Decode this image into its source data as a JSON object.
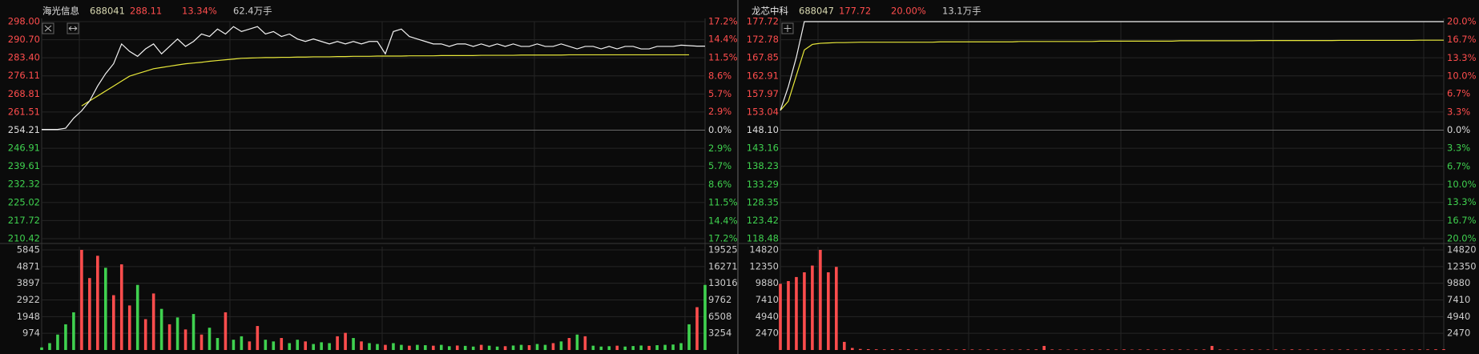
{
  "chart_data": [
    {
      "type": "intraday",
      "name": "海光信息",
      "code": "688041",
      "price_text": 288.11,
      "change": "13.34%",
      "volume_text": "62.4万手",
      "ylim": [
        210.42,
        298
      ],
      "yticks": [
        {
          "value": 298,
          "label": "298.00"
        },
        {
          "value": 290.7,
          "label": "290.70"
        },
        {
          "value": 283.4,
          "label": "283.40"
        },
        {
          "value": 276.11,
          "label": "276.11"
        },
        {
          "value": 268.81,
          "label": "268.81"
        },
        {
          "value": 261.51,
          "label": "261.51"
        },
        {
          "value": 254.21,
          "label": "254.21"
        },
        {
          "value": 246.91,
          "label": "246.91"
        },
        {
          "value": 239.61,
          "label": "239.61"
        },
        {
          "value": 232.32,
          "label": "232.32"
        },
        {
          "value": 225.02,
          "label": "225.02"
        },
        {
          "value": 217.72,
          "label": "217.72"
        },
        {
          "value": 210.42,
          "label": "210.42"
        }
      ],
      "y2lim": [
        -17.2,
        17.2
      ],
      "y2ticks": [
        {
          "value": 17.2,
          "label": "17.2%"
        },
        {
          "value": 14.4,
          "label": "14.4%"
        },
        {
          "value": 11.5,
          "label": "11.5%"
        },
        {
          "value": 8.6,
          "label": "8.6%"
        },
        {
          "value": 5.7,
          "label": "5.7%"
        },
        {
          "value": 2.9,
          "label": "2.9%"
        },
        {
          "value": 0,
          "label": "0.0%"
        },
        {
          "value": -2.9,
          "label": "2.9%"
        },
        {
          "value": -5.7,
          "label": "5.7%"
        },
        {
          "value": -8.6,
          "label": "8.6%"
        },
        {
          "value": -11.5,
          "label": "11.5%"
        },
        {
          "value": -14.4,
          "label": "14.4%"
        },
        {
          "value": -17.2,
          "label": "17.2%"
        }
      ],
      "price": [
        254.5,
        254.5,
        254.5,
        255,
        259,
        262,
        266,
        272,
        277,
        281,
        289,
        286,
        284,
        287,
        289,
        285,
        288,
        291,
        288,
        290,
        293,
        292,
        295,
        293,
        296,
        294,
        295,
        296,
        293,
        294,
        292,
        293,
        291,
        290,
        291,
        290,
        289,
        290,
        289,
        290,
        289,
        290,
        290,
        285,
        294,
        295,
        292,
        291,
        290,
        289,
        289,
        288,
        289,
        289,
        288,
        289,
        288,
        289,
        288,
        289,
        288,
        288,
        289,
        288,
        288,
        289,
        288,
        287,
        288,
        288,
        287,
        288,
        287,
        288,
        288,
        287,
        287,
        288,
        288,
        288,
        288.5,
        288.3,
        288.1,
        288.11
      ],
      "average": [
        null,
        null,
        null,
        null,
        null,
        264,
        266,
        268,
        270,
        272,
        274,
        276,
        277,
        278,
        279,
        279.5,
        280,
        280.5,
        281,
        281.3,
        281.6,
        282,
        282.3,
        282.6,
        282.9,
        283.2,
        283.3,
        283.4,
        283.5,
        283.5,
        283.6,
        283.6,
        283.7,
        283.7,
        283.8,
        283.8,
        283.8,
        283.9,
        283.9,
        284,
        284,
        284,
        284.1,
        284.1,
        284.1,
        284.1,
        284.2,
        284.2,
        284.2,
        284.2,
        284.3,
        284.3,
        284.3,
        284.3,
        284.3,
        284.4,
        284.4,
        284.4,
        284.4,
        284.4,
        284.5,
        284.5,
        284.5,
        284.5,
        284.5,
        284.5,
        284.6,
        284.6,
        284.6,
        284.6,
        284.6,
        284.6,
        284.6,
        284.6,
        284.6,
        284.6,
        284.6,
        284.6,
        284.6,
        284.6,
        284.6,
        284.6,
        null,
        null
      ],
      "volume": [
        150,
        400,
        900,
        1500,
        2200,
        5845,
        4200,
        5500,
        4800,
        3200,
        5000,
        2600,
        3800,
        1800,
        3300,
        2400,
        1500,
        1900,
        1200,
        2100,
        900,
        1300,
        700,
        2200,
        600,
        800,
        500,
        1400,
        600,
        500,
        700,
        400,
        600,
        500,
        350,
        450,
        400,
        800,
        1000,
        700,
        500,
        400,
        350,
        300,
        400,
        300,
        250,
        300,
        280,
        250,
        300,
        220,
        260,
        240,
        200,
        300,
        250,
        200,
        220,
        260,
        300,
        280,
        350,
        300,
        400,
        500,
        700,
        900,
        800,
        250,
        200,
        220,
        250,
        200,
        230,
        260,
        240,
        280,
        300,
        320,
        400,
        1500,
        2500,
        3800
      ],
      "volume_up": [
        false,
        false,
        false,
        false,
        false,
        true,
        true,
        true,
        false,
        true,
        true,
        true,
        false,
        true,
        true,
        false,
        true,
        false,
        true,
        false,
        true,
        false,
        false,
        true,
        false,
        false,
        true,
        true,
        false,
        false,
        true,
        false,
        false,
        true,
        false,
        false,
        false,
        true,
        true,
        false,
        true,
        false,
        false,
        true,
        false,
        false,
        true,
        false,
        false,
        true,
        false,
        false,
        true,
        false,
        false,
        true,
        false,
        false,
        true,
        false,
        false,
        true,
        false,
        false,
        true,
        false,
        true,
        false,
        true,
        false,
        false,
        false,
        true,
        false,
        false,
        false,
        true,
        false,
        false,
        false,
        false,
        false,
        true,
        false
      ],
      "volume_ylim": [
        0,
        5845
      ],
      "volume_yticks": [
        5845,
        4871,
        3897,
        2922,
        1948,
        974
      ],
      "volume_y2lim": [
        0,
        19525
      ],
      "volume_y2ticks": [
        19525,
        16271,
        13016,
        9762,
        6508,
        3254
      ],
      "price_color": "#f2f2f2",
      "average_color": "#e8e83a",
      "up_color": "#ff4d4d",
      "down_color": "#3fd14f",
      "grid": true
    },
    {
      "type": "intraday",
      "name": "龙芯中科",
      "code": "688047",
      "price_text": 177.72,
      "change": "20.00%",
      "volume_text": "13.1万手",
      "ylim": [
        118.48,
        177.72
      ],
      "yticks": [
        {
          "value": 177.72,
          "label": "177.72"
        },
        {
          "value": 172.78,
          "label": "172.78"
        },
        {
          "value": 167.85,
          "label": "167.85"
        },
        {
          "value": 162.91,
          "label": "162.91"
        },
        {
          "value": 157.97,
          "label": "157.97"
        },
        {
          "value": 153.04,
          "label": "153.04"
        },
        {
          "value": 148.1,
          "label": "148.10"
        },
        {
          "value": 143.16,
          "label": "143.16"
        },
        {
          "value": 138.23,
          "label": "138.23"
        },
        {
          "value": 133.29,
          "label": "133.29"
        },
        {
          "value": 128.35,
          "label": "128.35"
        },
        {
          "value": 123.42,
          "label": "123.42"
        },
        {
          "value": 118.48,
          "label": "118.48"
        }
      ],
      "y2lim": [
        -20,
        20
      ],
      "y2ticks": [
        {
          "value": 20,
          "label": "20.0%"
        },
        {
          "value": 16.7,
          "label": "16.7%"
        },
        {
          "value": 13.3,
          "label": "13.3%"
        },
        {
          "value": 10,
          "label": "10.0%"
        },
        {
          "value": 6.7,
          "label": "6.7%"
        },
        {
          "value": 3.3,
          "label": "3.3%"
        },
        {
          "value": 0,
          "label": "0.0%"
        },
        {
          "value": -3.3,
          "label": "3.3%"
        },
        {
          "value": -6.7,
          "label": "6.7%"
        },
        {
          "value": -10,
          "label": "10.0%"
        },
        {
          "value": -13.3,
          "label": "13.3%"
        },
        {
          "value": -16.7,
          "label": "16.7%"
        },
        {
          "value": -20,
          "label": "20.0%"
        }
      ],
      "price": [
        153.5,
        160,
        168,
        177.72,
        177.72,
        177.72,
        177.72,
        177.72,
        177.72,
        177.72,
        177.72,
        177.72,
        177.72,
        177.72,
        177.72,
        177.72,
        177.72,
        177.72,
        177.72,
        177.72,
        177.72,
        177.72,
        177.72,
        177.72,
        177.72,
        177.72,
        177.72,
        177.72,
        177.72,
        177.72,
        177.72,
        177.72,
        177.72,
        177.72,
        177.72,
        177.72,
        177.72,
        177.72,
        177.72,
        177.72,
        177.72,
        177.72,
        177.72,
        177.72,
        177.72,
        177.72,
        177.72,
        177.72,
        177.72,
        177.72,
        177.72,
        177.72,
        177.72,
        177.72,
        177.72,
        177.72,
        177.72,
        177.72,
        177.72,
        177.72,
        177.72,
        177.72,
        177.72,
        177.72,
        177.72,
        177.72,
        177.72,
        177.72,
        177.72,
        177.72,
        177.72,
        177.72,
        177.72,
        177.72,
        177.72,
        177.72,
        177.72,
        177.72,
        177.72,
        177.72,
        177.72,
        177.72,
        177.72,
        177.72
      ],
      "average": [
        153.5,
        156,
        163,
        170,
        171.5,
        171.8,
        171.9,
        172,
        172,
        172.05,
        172.1,
        172.1,
        172.1,
        172.1,
        172.1,
        172.1,
        172.1,
        172.1,
        172.1,
        172.1,
        172.2,
        172.2,
        172.2,
        172.2,
        172.2,
        172.2,
        172.2,
        172.2,
        172.2,
        172.2,
        172.3,
        172.3,
        172.3,
        172.3,
        172.3,
        172.3,
        172.3,
        172.3,
        172.3,
        172.3,
        172.4,
        172.4,
        172.4,
        172.4,
        172.4,
        172.4,
        172.4,
        172.4,
        172.4,
        172.4,
        172.5,
        172.5,
        172.5,
        172.5,
        172.5,
        172.5,
        172.5,
        172.5,
        172.5,
        172.5,
        172.55,
        172.55,
        172.55,
        172.55,
        172.55,
        172.55,
        172.55,
        172.55,
        172.55,
        172.55,
        172.6,
        172.6,
        172.6,
        172.6,
        172.6,
        172.6,
        172.6,
        172.6,
        172.6,
        172.6,
        172.65,
        172.65,
        172.65,
        172.65
      ],
      "volume": [
        9800,
        10200,
        10800,
        11500,
        12500,
        14820,
        11500,
        12300,
        1200,
        300,
        150,
        120,
        100,
        90,
        110,
        80,
        100,
        90,
        70,
        80,
        90,
        80,
        70,
        100,
        80,
        60,
        90,
        70,
        80,
        60,
        70,
        80,
        90,
        600,
        80,
        70,
        60,
        80,
        70,
        90,
        60,
        80,
        70,
        90,
        60,
        70,
        80,
        60,
        90,
        70,
        80,
        60,
        70,
        80,
        600,
        70,
        60,
        80,
        70,
        90,
        60,
        70,
        80,
        60,
        90,
        70,
        60,
        80,
        70,
        60,
        70,
        80,
        60,
        90,
        70,
        60,
        80,
        70,
        90,
        60,
        90,
        80,
        100,
        120
      ],
      "volume_up": [
        true,
        true,
        true,
        true,
        true,
        true,
        true,
        true,
        true,
        true,
        true,
        true,
        true,
        true,
        true,
        true,
        true,
        true,
        true,
        true,
        true,
        true,
        true,
        true,
        true,
        true,
        true,
        true,
        true,
        true,
        true,
        true,
        true,
        true,
        true,
        true,
        true,
        true,
        true,
        true,
        true,
        true,
        true,
        true,
        true,
        true,
        true,
        true,
        true,
        true,
        true,
        true,
        true,
        true,
        true,
        true,
        true,
        true,
        true,
        true,
        true,
        true,
        true,
        true,
        true,
        true,
        true,
        true,
        true,
        true,
        true,
        true,
        true,
        true,
        true,
        true,
        true,
        true,
        true,
        true,
        true,
        true,
        true,
        true
      ],
      "volume_ylim": [
        0,
        14820
      ],
      "volume_yticks": [
        14820,
        12350,
        9880,
        7410,
        4940,
        2470
      ],
      "volume_y2lim": [
        0,
        14820
      ],
      "volume_y2ticks": [
        14820,
        12350,
        9880,
        7410,
        4940,
        2470
      ],
      "price_color": "#f2f2f2",
      "average_color": "#e8e83a",
      "up_color": "#ff4d4d",
      "down_color": "#3fd14f",
      "grid": true
    }
  ]
}
